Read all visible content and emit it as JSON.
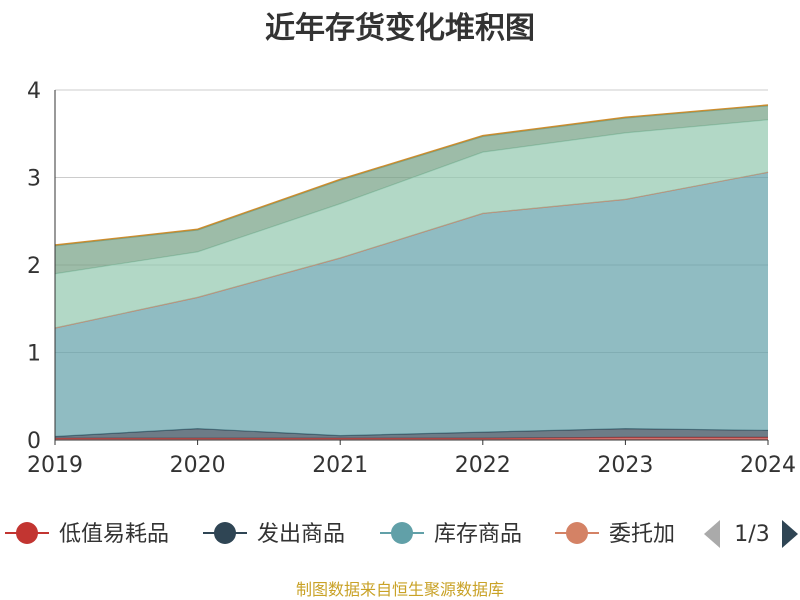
{
  "chart_data": {
    "type": "area",
    "stacked": true,
    "title": "近年存货变化堆积图",
    "x": [
      "2019",
      "2020",
      "2021",
      "2022",
      "2023",
      "2024"
    ],
    "ylim": [
      0,
      4
    ],
    "y_ticks": [
      "0",
      "1",
      "2",
      "3",
      "4"
    ],
    "grid": true,
    "series": [
      {
        "name": "低值易耗品",
        "color": "#c23531",
        "values": [
          0.02,
          0.02,
          0.02,
          0.02,
          0.03,
          0.03
        ]
      },
      {
        "name": "发出商品",
        "color": "#2f4554",
        "values": [
          0.02,
          0.11,
          0.03,
          0.07,
          0.1,
          0.08
        ]
      },
      {
        "name": "库存商品",
        "color": "#61a0a8",
        "values": [
          1.24,
          1.5,
          2.03,
          2.5,
          2.62,
          2.95
        ]
      },
      {
        "name": "委托加工物资",
        "color": "#d48265",
        "values": [
          0.0,
          0.0,
          0.0,
          0.0,
          0.0,
          0.0
        ]
      },
      {
        "name": "",
        "color": "#91c7ae",
        "values": [
          0.62,
          0.52,
          0.62,
          0.7,
          0.76,
          0.6
        ]
      },
      {
        "name": "",
        "color": "#749f83",
        "values": [
          0.32,
          0.25,
          0.27,
          0.18,
          0.17,
          0.16
        ]
      },
      {
        "name": "",
        "color": "#ca8622",
        "values": [
          0.01,
          0.01,
          0.01,
          0.01,
          0.01,
          0.01
        ]
      }
    ],
    "legend": {
      "position": "bottom",
      "visible_items": [
        "低值易耗品",
        "发出商品",
        "库存商品",
        "委托加"
      ],
      "page": "1/3"
    }
  },
  "footer": {
    "source": "制图数据来自恒生聚源数据库"
  }
}
